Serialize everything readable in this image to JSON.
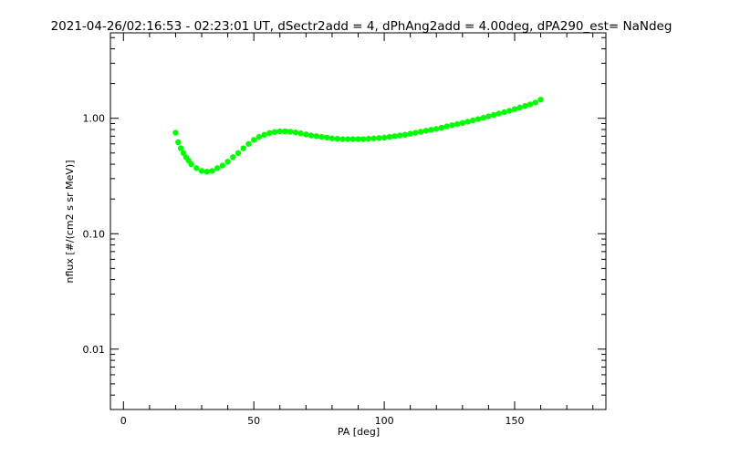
{
  "chart_data": {
    "type": "scatter",
    "title": "2021-04-26/02:16:53 - 02:23:01 UT, dSectr2add = 4, dPhAng2add = 4.00deg, dPA290_est=    NaNdeg",
    "xlabel": "PA [deg]",
    "ylabel": "nflux [#/(cm2 s sr MeV)]",
    "xlim": [
      -5,
      185
    ],
    "ylim": [
      0.003,
      5.5
    ],
    "yscale": "log",
    "grid": false,
    "x_ticks": [
      {
        "value": 0,
        "label": "0"
      },
      {
        "value": 50,
        "label": "50"
      },
      {
        "value": 100,
        "label": "100"
      },
      {
        "value": 150,
        "label": "150"
      }
    ],
    "y_ticks": [
      {
        "value": 0.01,
        "label": "0.01"
      },
      {
        "value": 0.1,
        "label": "0.10"
      },
      {
        "value": 1,
        "label": "1.00"
      }
    ],
    "series": [
      {
        "color": "#00ff00",
        "x": [
          20,
          21,
          22,
          23,
          24,
          25,
          26,
          28,
          30,
          32,
          34,
          36,
          38,
          40,
          42,
          44,
          46,
          48,
          50,
          52,
          54,
          56,
          58,
          60,
          62,
          64,
          66,
          68,
          70,
          72,
          74,
          76,
          78,
          80,
          82,
          84,
          86,
          88,
          90,
          92,
          94,
          96,
          98,
          100,
          102,
          104,
          106,
          108,
          110,
          112,
          114,
          116,
          118,
          120,
          122,
          124,
          126,
          128,
          130,
          132,
          134,
          136,
          138,
          140,
          142,
          144,
          146,
          148,
          150,
          152,
          154,
          156,
          158,
          160
        ],
        "y": [
          0.75,
          0.62,
          0.55,
          0.5,
          0.46,
          0.43,
          0.4,
          0.37,
          0.35,
          0.345,
          0.35,
          0.37,
          0.39,
          0.42,
          0.46,
          0.5,
          0.55,
          0.6,
          0.65,
          0.69,
          0.72,
          0.745,
          0.76,
          0.77,
          0.77,
          0.765,
          0.755,
          0.74,
          0.725,
          0.71,
          0.7,
          0.69,
          0.68,
          0.67,
          0.665,
          0.66,
          0.66,
          0.66,
          0.66,
          0.66,
          0.665,
          0.67,
          0.675,
          0.68,
          0.69,
          0.7,
          0.71,
          0.72,
          0.735,
          0.75,
          0.765,
          0.78,
          0.795,
          0.81,
          0.83,
          0.85,
          0.87,
          0.89,
          0.91,
          0.935,
          0.96,
          0.985,
          1.01,
          1.04,
          1.07,
          1.1,
          1.13,
          1.16,
          1.2,
          1.24,
          1.28,
          1.32,
          1.37,
          1.45
        ]
      }
    ]
  }
}
